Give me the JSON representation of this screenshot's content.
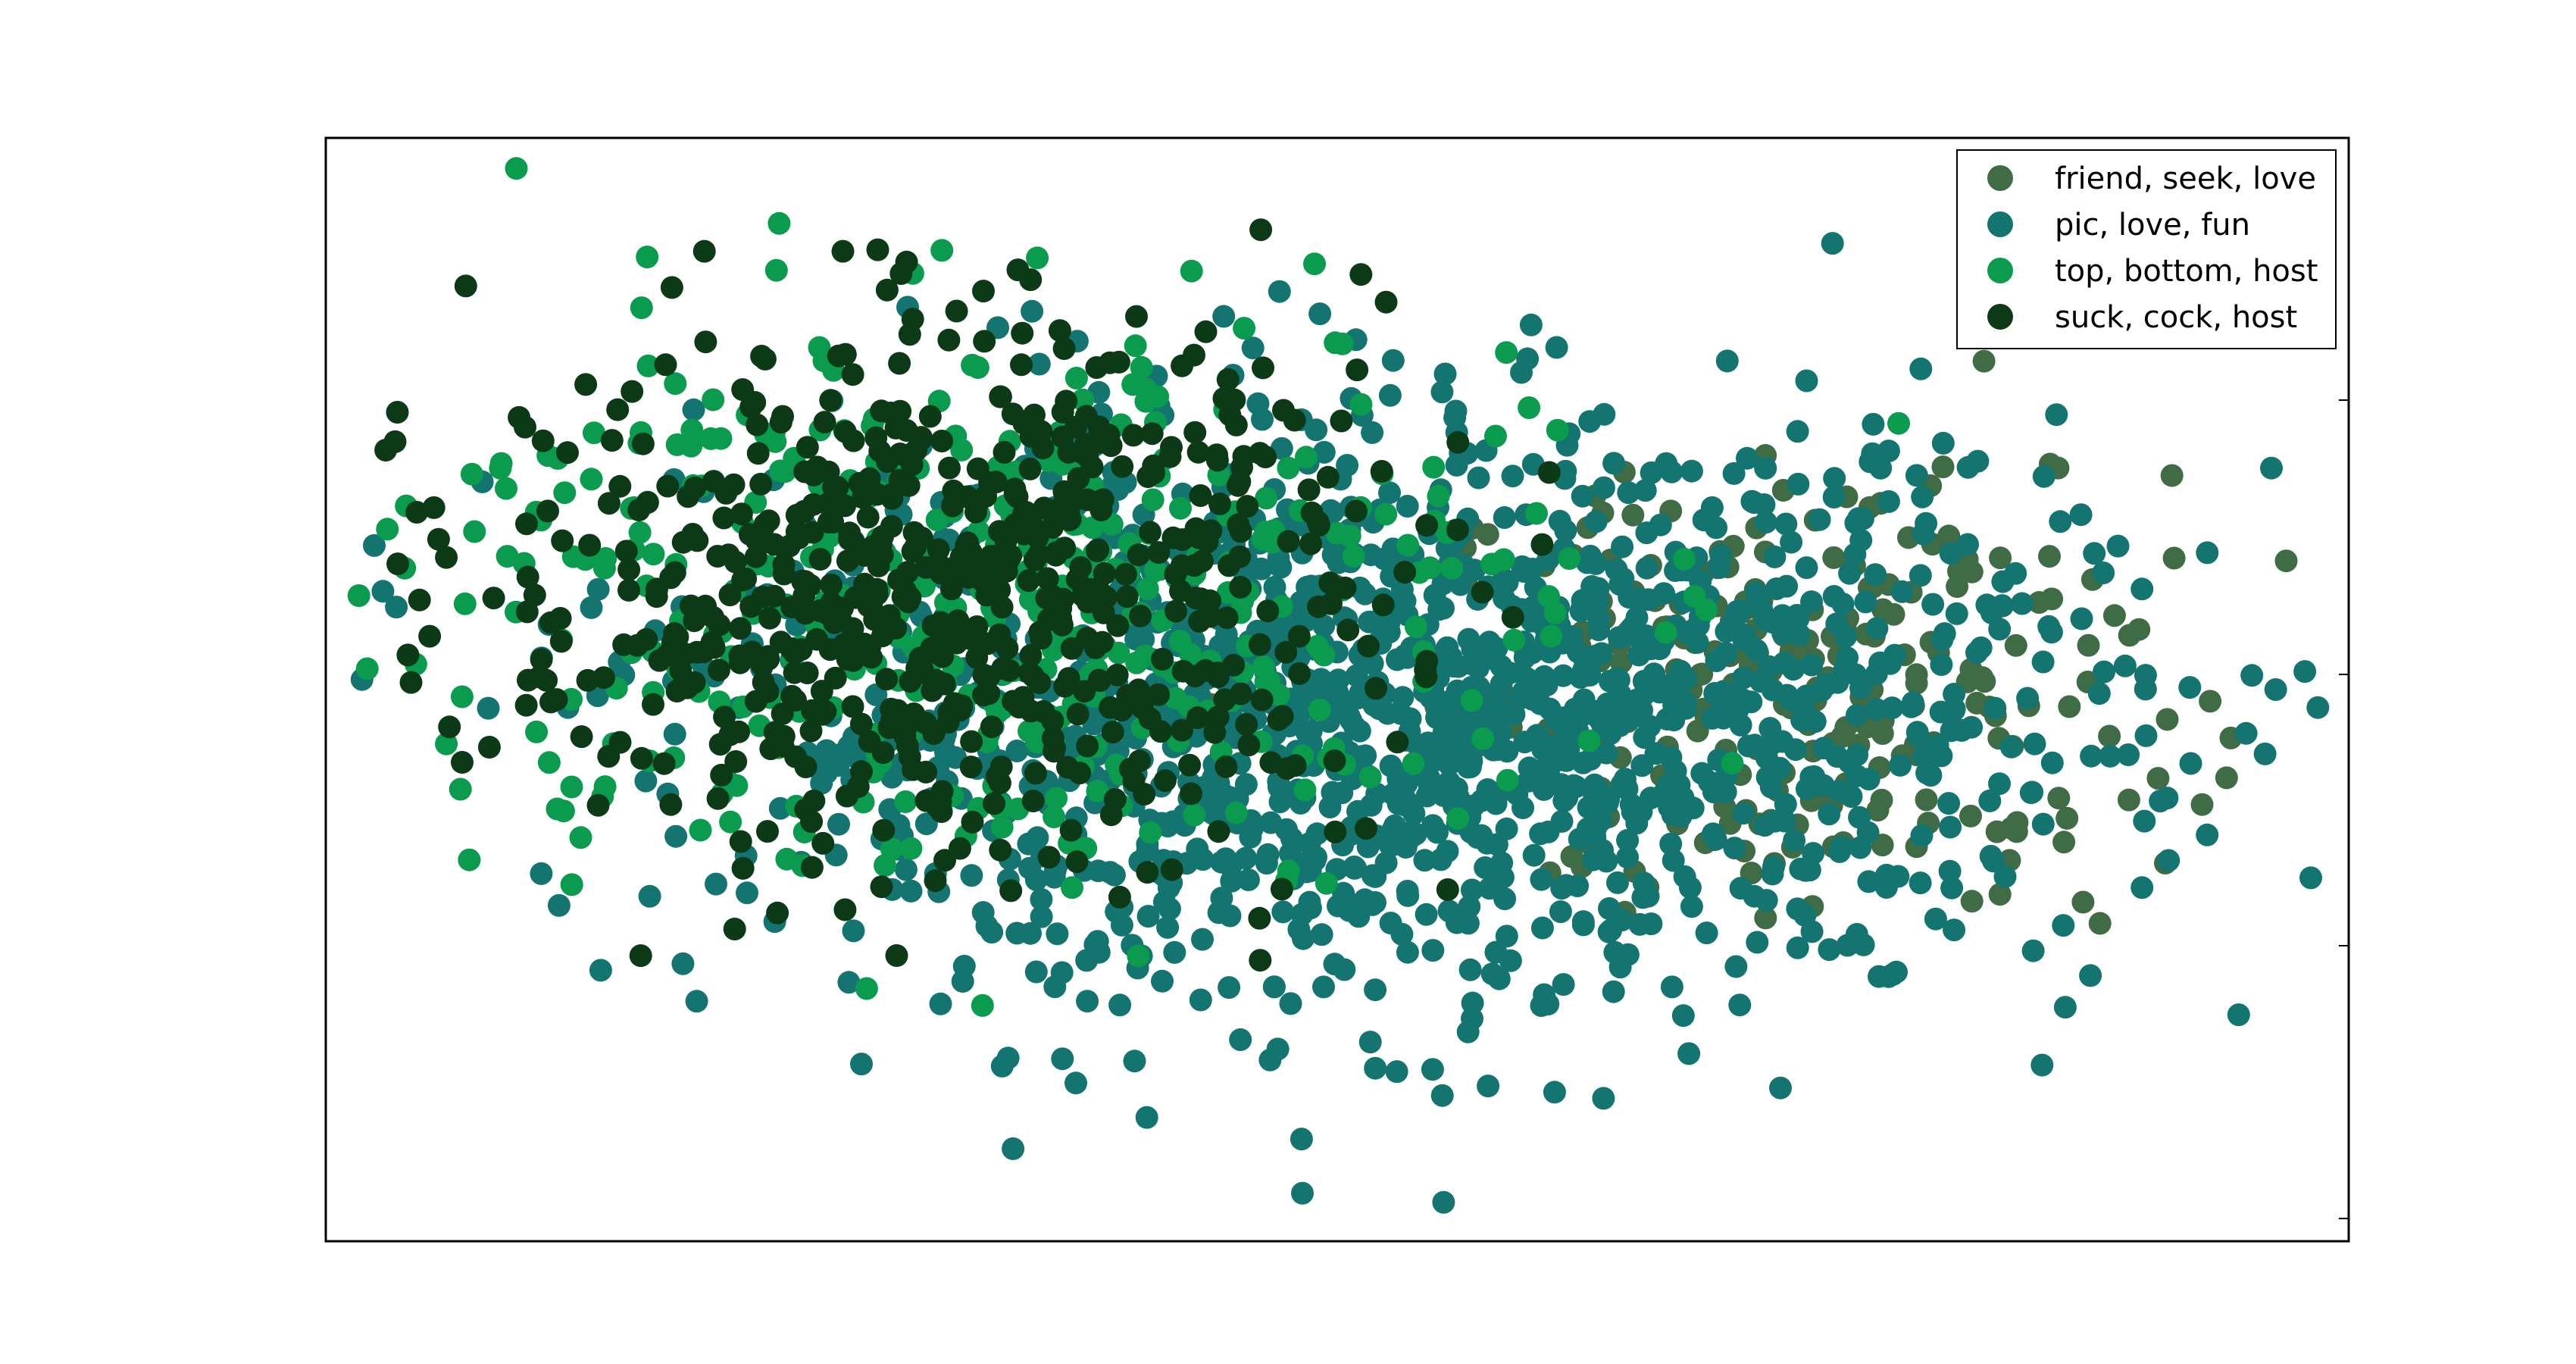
{
  "chart_data": {
    "type": "scatter",
    "title": "",
    "xlabel": "",
    "ylabel": "",
    "xlim": [
      -1.0,
      1.0
    ],
    "ylim": [
      -1.0,
      1.0
    ],
    "grid": false,
    "legend_position": "top-right",
    "series": [
      {
        "name": "friend, seek, love",
        "color": "#3f6b45",
        "cluster": {
          "center": [
            0.46,
            0.0
          ],
          "spread": [
            0.18,
            0.2
          ],
          "count": 260
        }
      },
      {
        "name": "pic, love, fun",
        "color": "#137470",
        "cluster": {
          "center": [
            0.08,
            -0.05
          ],
          "spread": [
            0.34,
            0.26
          ],
          "count": 1500
        }
      },
      {
        "name": "top, bottom, host",
        "color": "#0a9b4e",
        "cluster": {
          "center": [
            -0.37,
            0.17
          ],
          "spread": [
            0.28,
            0.26
          ],
          "count": 430
        }
      },
      {
        "name": "suck, cock, host",
        "color": "#0c3a17",
        "cluster": {
          "center": [
            -0.4,
            0.18
          ],
          "spread": [
            0.22,
            0.24
          ],
          "count": 700
        }
      }
    ]
  }
}
